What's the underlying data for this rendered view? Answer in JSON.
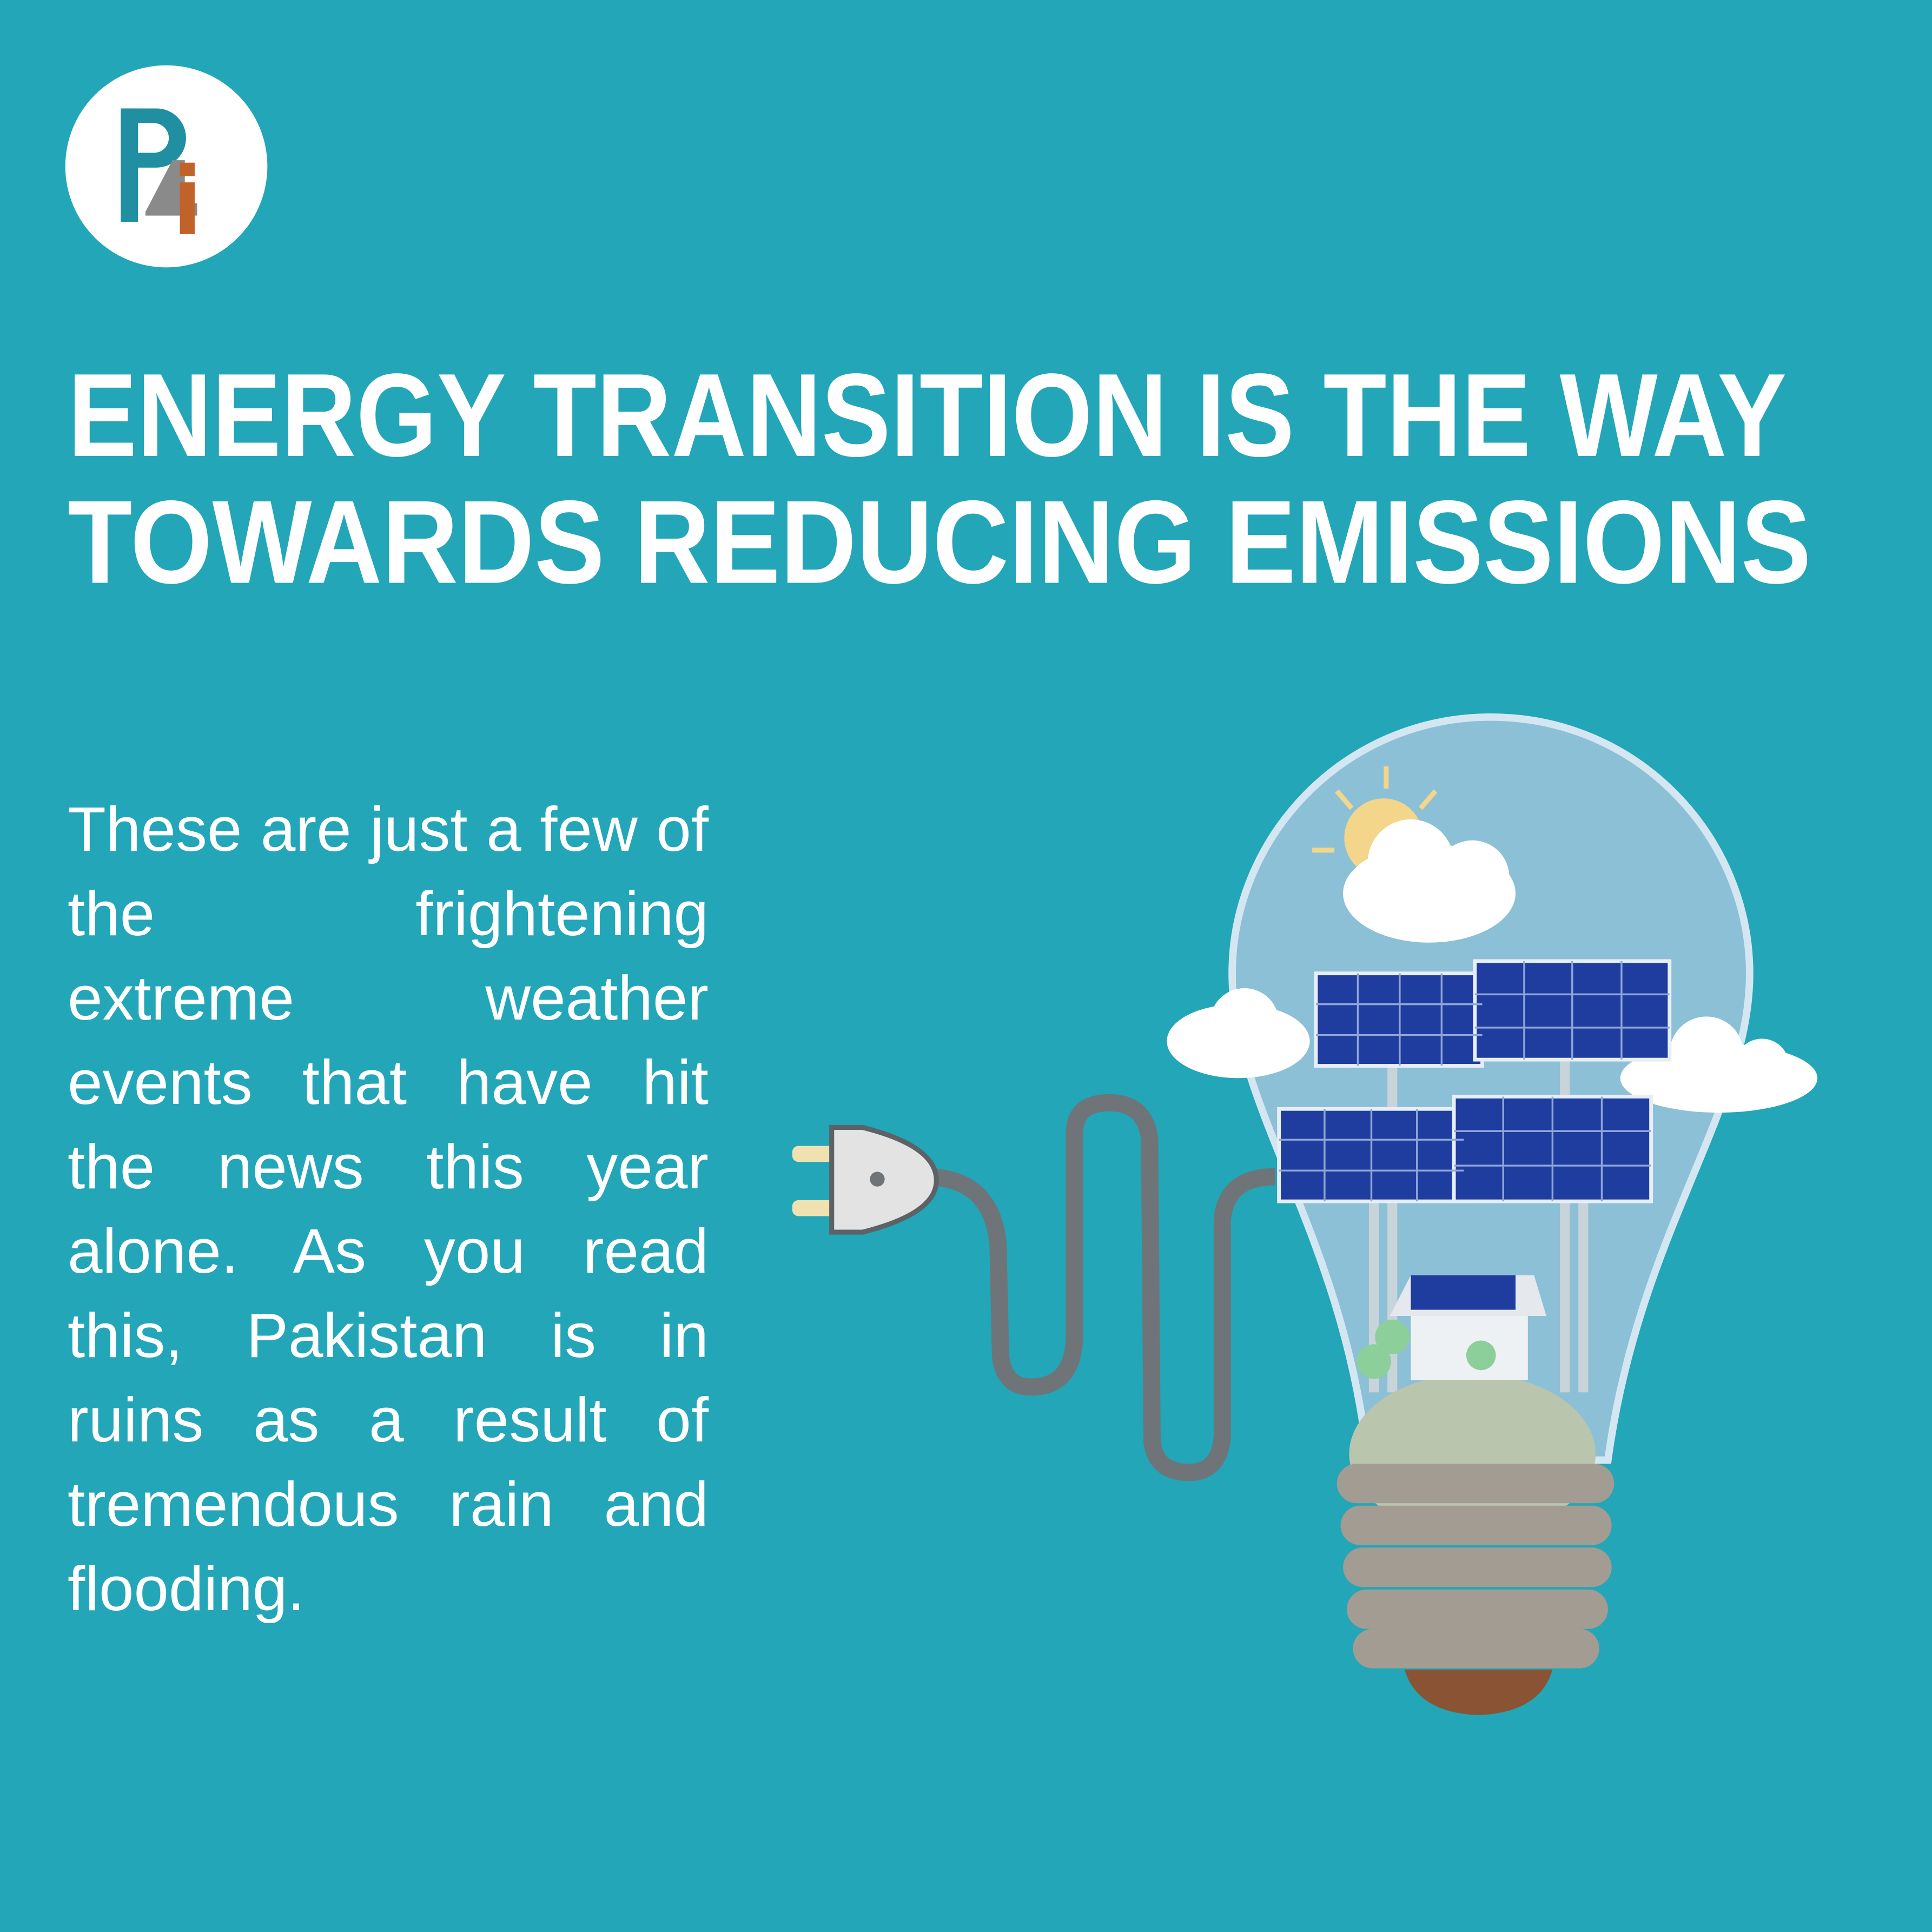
{
  "header": {
    "title_lines": [
      "ENERGY TRANSITION IS THE WAY",
      "TOWARDS REDUCING EMISSIONS"
    ]
  },
  "body": {
    "text": "These are just a few of the frightening extreme weather events that have hit the news this year alone. As you read this, Pakistan is in ruins as a result of tremendous rain and flooding."
  }
}
